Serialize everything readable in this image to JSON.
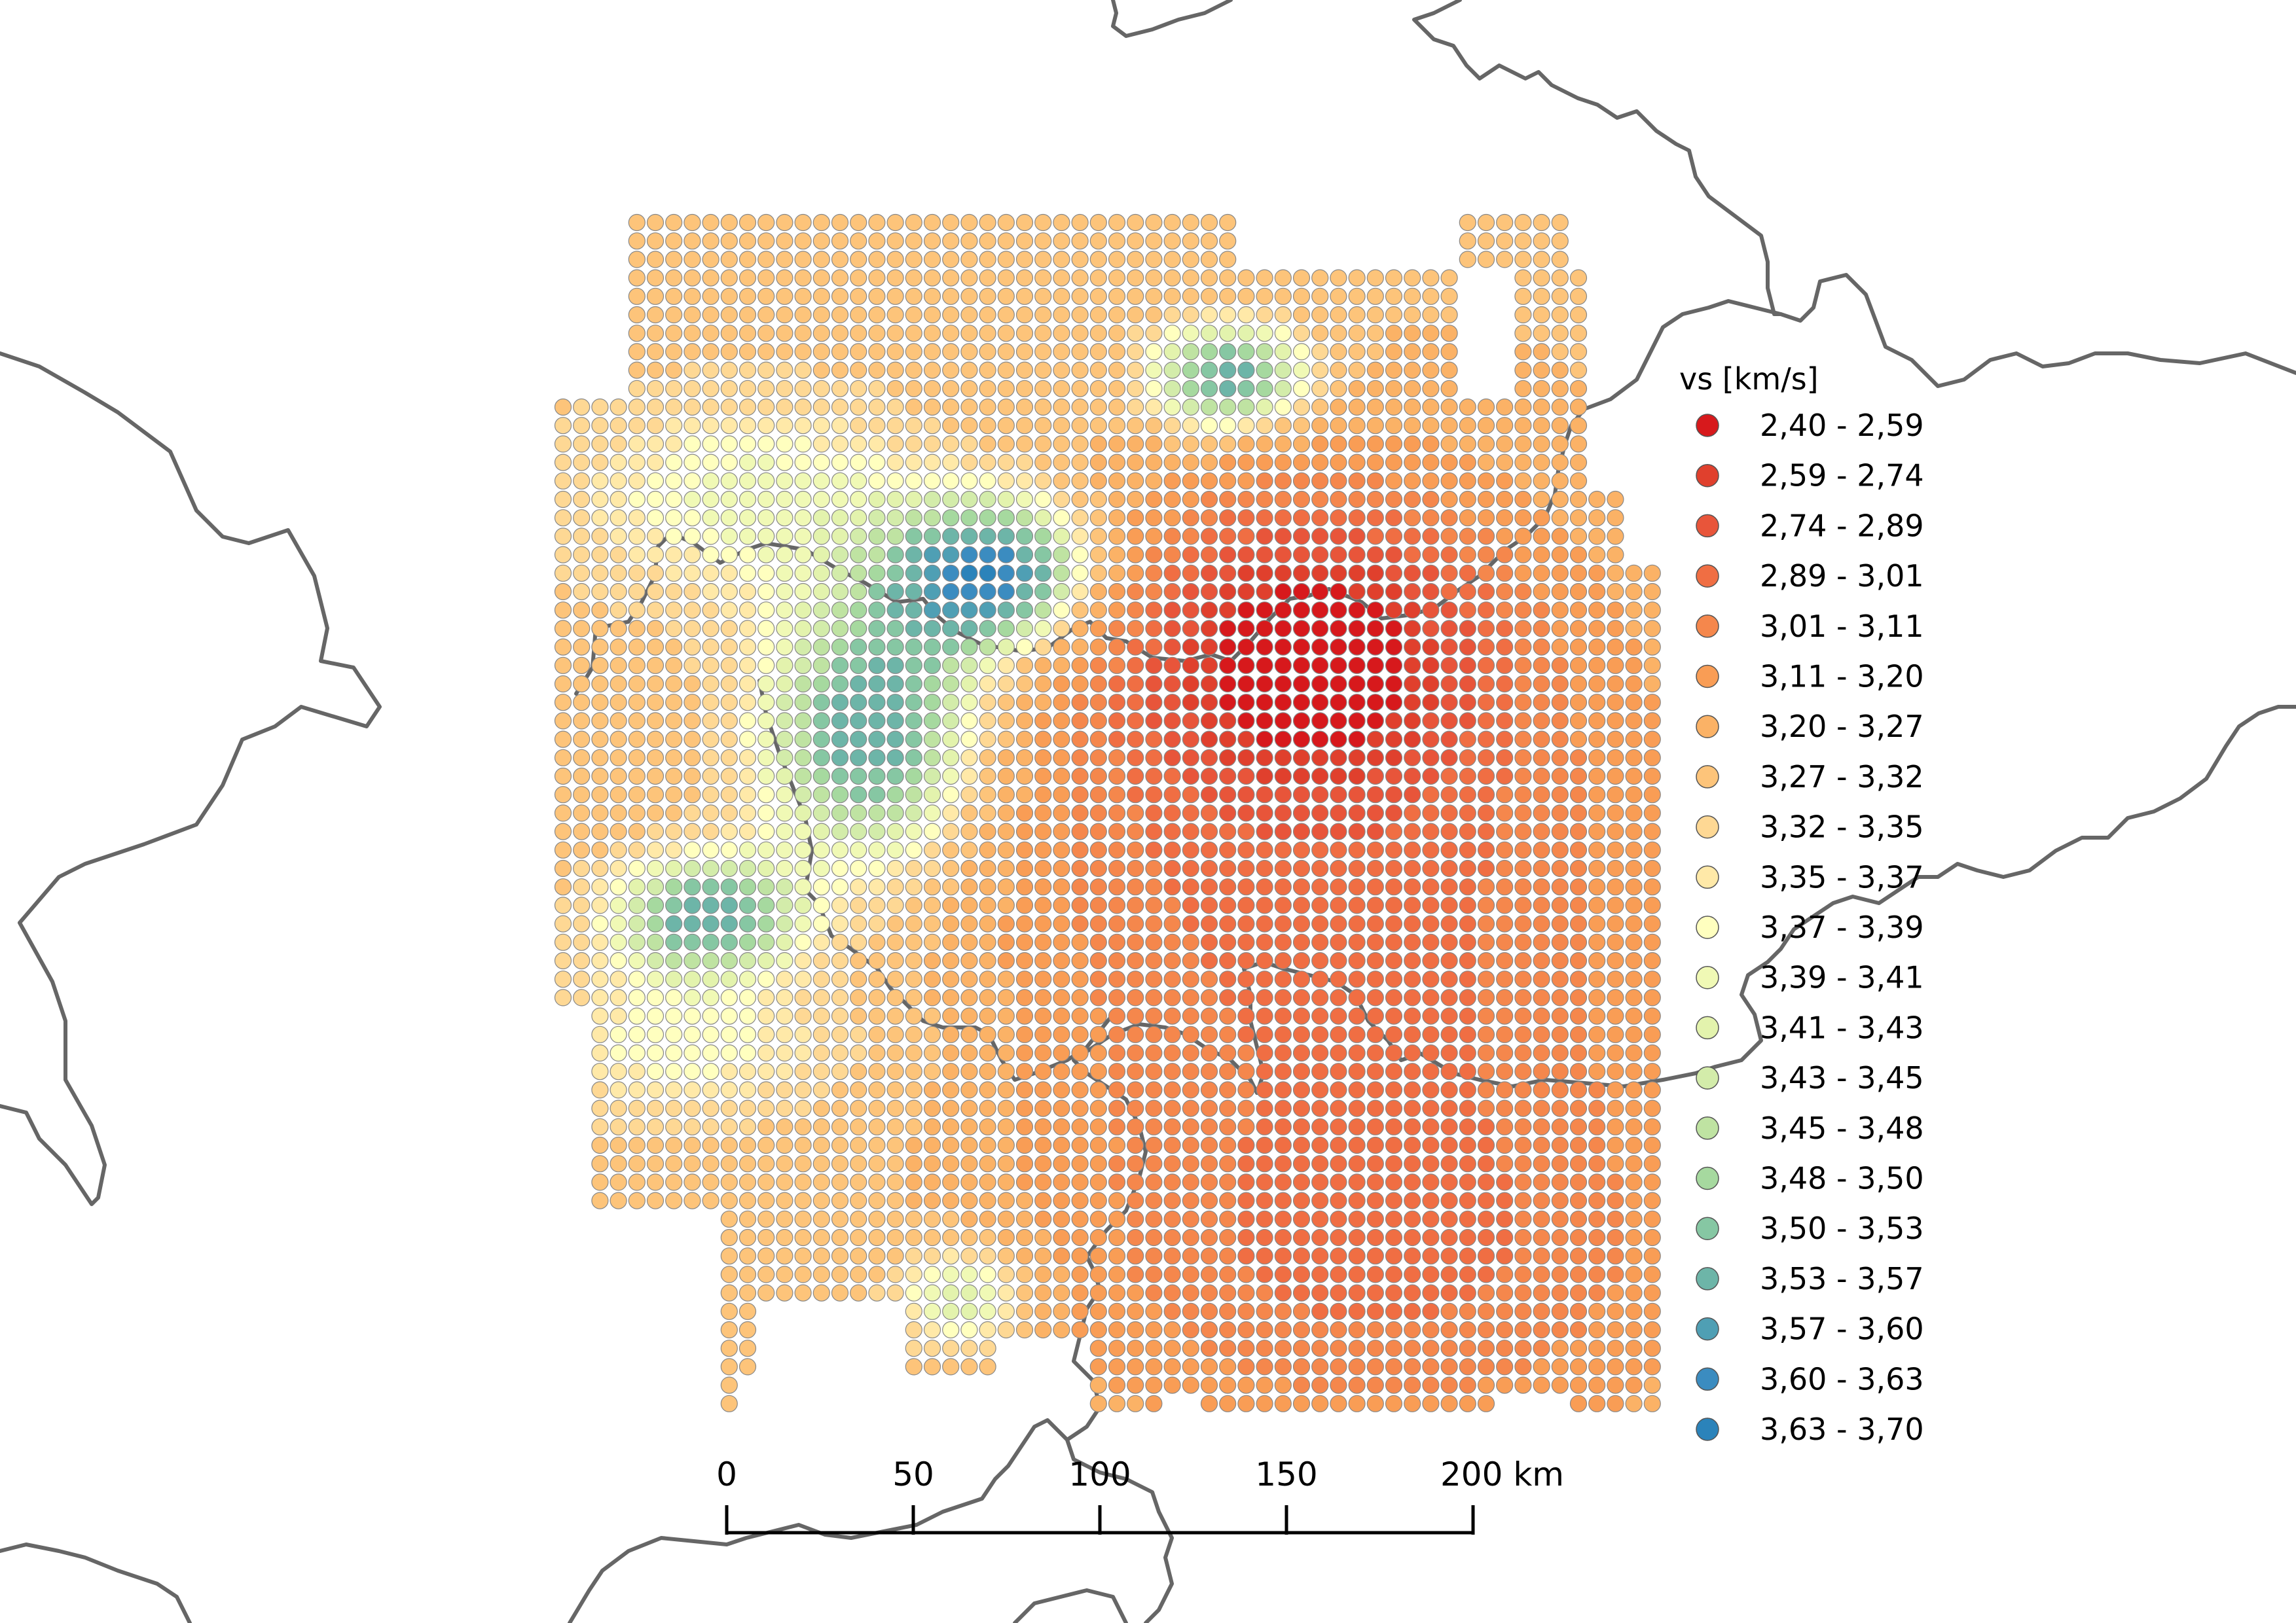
{
  "legend": {
    "title": "vs [km/s]",
    "classes": [
      {
        "label": "2,40 - 2,59",
        "color": "#d7191c"
      },
      {
        "label": "2,59 - 2,74",
        "color": "#e0402d"
      },
      {
        "label": "2,74 - 2,89",
        "color": "#e8553a"
      },
      {
        "label": "2,89 - 3,01",
        "color": "#f06e43"
      },
      {
        "label": "3,01 - 3,11",
        "color": "#f5874c"
      },
      {
        "label": "3,11 - 3,20",
        "color": "#f99d55"
      },
      {
        "label": "3,20 - 3,27",
        "color": "#fbb266"
      },
      {
        "label": "3,27 - 3,32",
        "color": "#fdc47a"
      },
      {
        "label": "3,32 - 3,35",
        "color": "#fed894"
      },
      {
        "label": "3,35 - 3,37",
        "color": "#ffe9a8"
      },
      {
        "label": "3,37 - 3,39",
        "color": "#ffffbf"
      },
      {
        "label": "3,39 - 3,41",
        "color": "#f0f9b5"
      },
      {
        "label": "3,41 - 3,43",
        "color": "#e3f3ad"
      },
      {
        "label": "3,43 - 3,45",
        "color": "#d3ecaa"
      },
      {
        "label": "3,45 - 3,48",
        "color": "#bfe3a2"
      },
      {
        "label": "3,48 - 3,50",
        "color": "#a6d99f"
      },
      {
        "label": "3,50 - 3,53",
        "color": "#86c7a3"
      },
      {
        "label": "3,53 - 3,57",
        "color": "#6db5a8"
      },
      {
        "label": "3,57 - 3,60",
        "color": "#4f9fb4"
      },
      {
        "label": "3,60 - 3,63",
        "color": "#3b8cc0"
      },
      {
        "label": "3,63 - 3,70",
        "color": "#2b83ba"
      }
    ]
  },
  "scalebar": {
    "ticks": [
      "0",
      "50",
      "100",
      "150",
      "200 km"
    ]
  },
  "colors": {
    "border": "#666666",
    "dot_outline": "#888888",
    "background": "#ffffff"
  }
}
